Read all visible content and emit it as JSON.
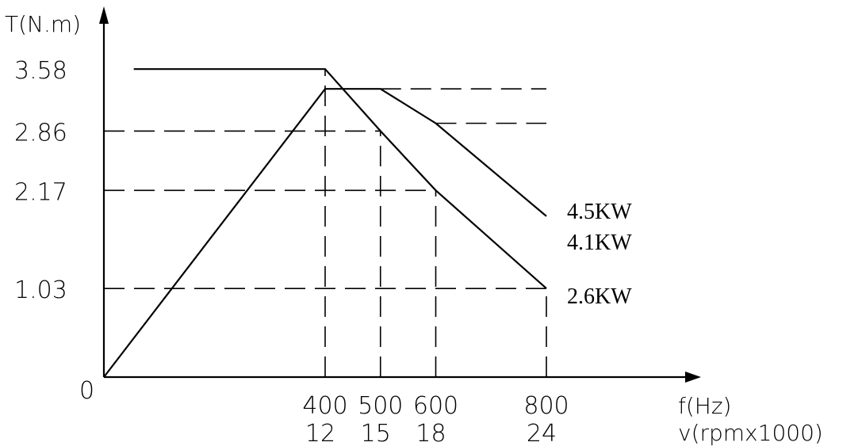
{
  "chart_data": {
    "type": "line",
    "y_axis_title": "T(N.m)",
    "x_axis_title_1": "f(Hz)",
    "x_axis_title_2": "v(rpmx1000)",
    "origin_label": "0",
    "x_ticks": [
      {
        "f": 400,
        "label_f": "400",
        "label_v": "12"
      },
      {
        "f": 500,
        "label_f": "500",
        "label_v": "15"
      },
      {
        "f": 600,
        "label_f": "600",
        "label_v": "18"
      },
      {
        "f": 800,
        "label_f": "800",
        "label_v": "24"
      }
    ],
    "y_ticks": [
      {
        "value": 3.58,
        "label": "3.58"
      },
      {
        "value": 2.86,
        "label": "2.86"
      },
      {
        "value": 2.17,
        "label": "2.17"
      },
      {
        "value": 1.03,
        "label": "1.03"
      }
    ],
    "xlim": [
      0,
      1000
    ],
    "ylim": [
      0,
      3.9
    ],
    "series": [
      {
        "points": [
          [
            54,
            3.58
          ],
          [
            400,
            3.58
          ],
          [
            500,
            2.86
          ],
          [
            600,
            2.17
          ],
          [
            800,
            1.03
          ]
        ]
      },
      {
        "points": [
          [
            0,
            0
          ],
          [
            400,
            3.35
          ],
          [
            500,
            3.35
          ],
          [
            600,
            2.95
          ],
          [
            800,
            1.87
          ]
        ]
      }
    ],
    "power_annotations": [
      {
        "label": "4.5KW",
        "level": 3.35
      },
      {
        "label": "4.1KW",
        "level": 2.95
      },
      {
        "label": "2.6KW",
        "level": 1.87
      }
    ]
  }
}
